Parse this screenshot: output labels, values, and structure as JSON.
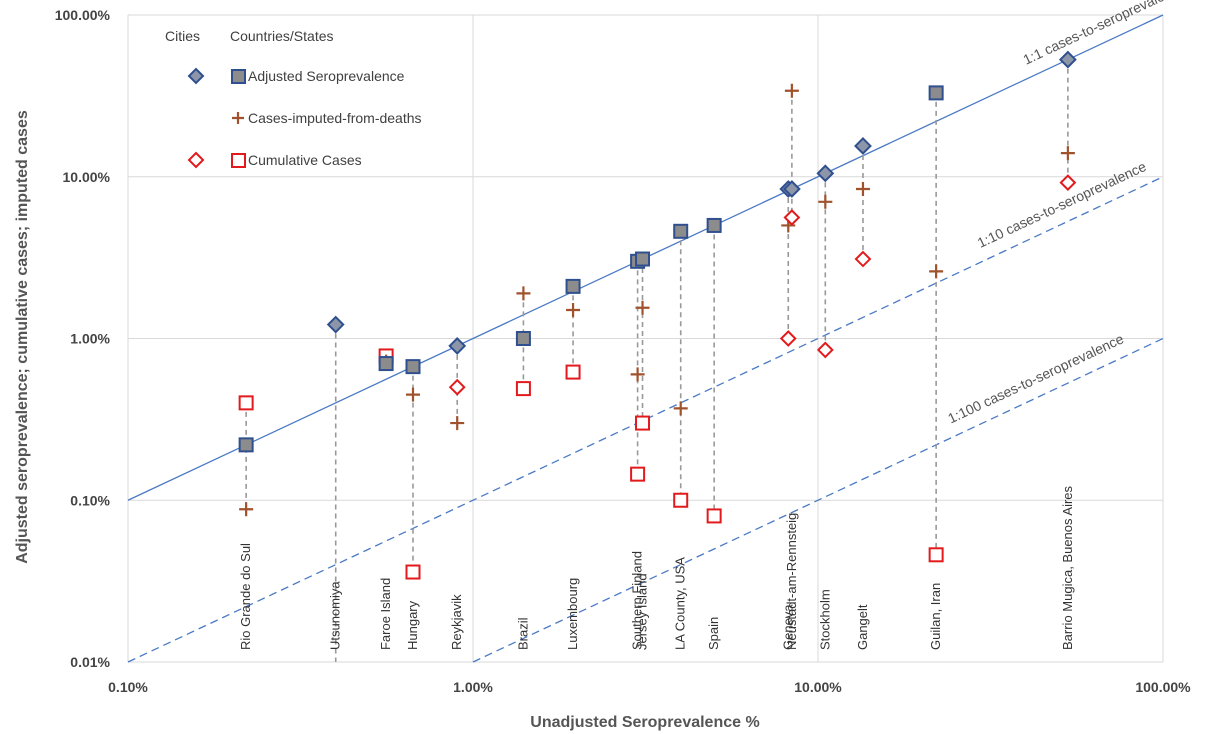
{
  "chart_data": {
    "type": "scatter",
    "xlabel": "Unadjusted Seroprevalence %",
    "ylabel": "Adjusted seroprevalence; cumulative cases; imputed cases",
    "x_scale": "log",
    "y_scale": "log",
    "xlim": [
      0.1,
      100
    ],
    "ylim": [
      0.01,
      100
    ],
    "x_ticks": [
      {
        "value": 0.1,
        "label": "0.10%"
      },
      {
        "value": 1,
        "label": "1.00%"
      },
      {
        "value": 10,
        "label": "10.00%"
      },
      {
        "value": 100,
        "label": "100.00%"
      }
    ],
    "y_ticks": [
      {
        "value": 0.01,
        "label": "0.01%"
      },
      {
        "value": 0.1,
        "label": "0.10%"
      },
      {
        "value": 1,
        "label": "1.00%"
      },
      {
        "value": 10,
        "label": "10.00%"
      },
      {
        "value": 100,
        "label": "100.00%"
      }
    ],
    "grid": true,
    "legend": {
      "placement": "top-left",
      "header_cities": "Cities",
      "header_countries": "Countries/States",
      "items": [
        {
          "label": "Adjusted Seroprevalence",
          "color": "#4a6fa5"
        },
        {
          "label": "Cases-imputed-from-deaths",
          "color": "#a0522d"
        },
        {
          "label": "Cumulative Cases",
          "color": "#e31a1c"
        }
      ]
    },
    "reference_lines": [
      {
        "label": "1:1 cases-to-seroprevalence",
        "ratio": 1,
        "style": "solid",
        "color": "#4a7ac4"
      },
      {
        "label": "1:10 cases-to-seroprevalence",
        "ratio": 0.1,
        "style": "dashed",
        "color": "#4a7ac4"
      },
      {
        "label": "1:100 cases-to-seroprevalence",
        "ratio": 0.01,
        "style": "dashed",
        "color": "#4a7ac4"
      }
    ],
    "locations": [
      {
        "name": "Rio Grande do Sul",
        "type": "state",
        "x": 0.22,
        "adjusted": 0.22,
        "cases": 0.4,
        "imputed": 0.088
      },
      {
        "name": "Utsunomiya",
        "type": "city",
        "x": 0.4,
        "adjusted": 1.22,
        "cases": null,
        "imputed": null
      },
      {
        "name": "Faroe Island",
        "type": "country",
        "x": 0.56,
        "adjusted": 0.7,
        "cases": 0.78,
        "imputed": 0.72
      },
      {
        "name": "Hungary",
        "type": "country",
        "x": 0.67,
        "adjusted": 0.67,
        "cases": 0.036,
        "imputed": 0.45
      },
      {
        "name": "Reykjavik",
        "type": "city",
        "x": 0.9,
        "adjusted": 0.9,
        "cases": 0.5,
        "imputed": 0.3
      },
      {
        "name": "Brazil",
        "type": "country",
        "x": 1.4,
        "adjusted": 1.0,
        "cases": 0.49,
        "imputed": 1.9
      },
      {
        "name": "Luxembourg",
        "type": "country",
        "x": 1.95,
        "adjusted": 2.1,
        "cases": 0.62,
        "imputed": 1.5
      },
      {
        "name": "Southern Finland",
        "type": "country",
        "x": 3.0,
        "adjusted": 3.0,
        "cases": 0.145,
        "imputed": 0.6
      },
      {
        "name": "Jersey Island",
        "type": "country",
        "x": 3.1,
        "adjusted": 3.1,
        "cases": 0.3,
        "imputed": 1.55
      },
      {
        "name": "LA County, USA",
        "type": "country",
        "x": 4.0,
        "adjusted": 4.6,
        "cases": 0.1,
        "imputed": 0.37
      },
      {
        "name": "Spain",
        "type": "country",
        "x": 5.0,
        "adjusted": 5.0,
        "cases": 0.08,
        "imputed": 5.0
      },
      {
        "name": "Geneva",
        "type": "city",
        "x": 8.2,
        "adjusted": 8.4,
        "cases": 1.0,
        "imputed": 5.0
      },
      {
        "name": "Neustadt-am-Rennsteig",
        "type": "city",
        "x": 8.4,
        "adjusted": 8.4,
        "cases": 5.6,
        "imputed": 34
      },
      {
        "name": "Stockholm",
        "type": "city",
        "x": 10.5,
        "adjusted": 10.5,
        "cases": 0.85,
        "imputed": 7.0
      },
      {
        "name": "Gangelt",
        "type": "city",
        "x": 13.5,
        "adjusted": 15.5,
        "cases": 3.1,
        "imputed": 8.4
      },
      {
        "name": "Guilan, Iran",
        "type": "state",
        "x": 22,
        "adjusted": 33,
        "cases": 0.046,
        "imputed": 2.6
      },
      {
        "name": "Barrio Mugica, Buenos Aires",
        "type": "city",
        "x": 53,
        "adjusted": 53,
        "cases": 9.2,
        "imputed": 14
      }
    ]
  }
}
